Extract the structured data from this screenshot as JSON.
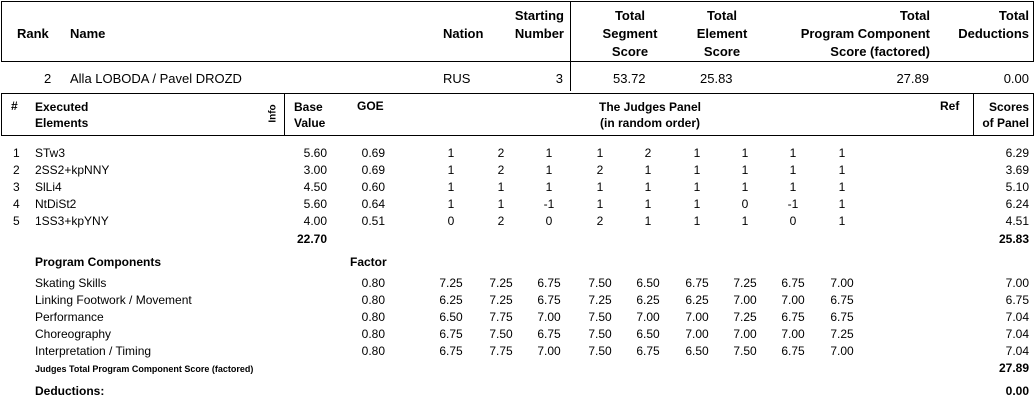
{
  "header": {
    "rank": "Rank",
    "name": "Name",
    "nation": "Nation",
    "starting_1": "Starting",
    "starting_2": "Number",
    "tss_1": "Total",
    "tss_2": "Segment",
    "tss_3": "Score",
    "tes_1": "Total",
    "tes_2": "Element",
    "tes_3": "Score",
    "pcs_1": "Total",
    "pcs_2": "Program  Component",
    "pcs_3": "Score (factored)",
    "ded_1": "Total",
    "ded_2": "Deductions"
  },
  "skater": {
    "rank": "2",
    "name": "Alla LOBODA / Pavel DROZD",
    "nation": "RUS",
    "start": "3",
    "tss": "53.72",
    "tes": "25.83",
    "pcs": "27.89",
    "ded": "0.00"
  },
  "elements_header": {
    "num": "#",
    "exec_1": "Executed",
    "exec_2": "Elements",
    "info": "Info",
    "base_1": "Base",
    "base_2": "Value",
    "goe": "GOE",
    "panel_1": "The Judges Panel",
    "panel_2": "(in random order)",
    "ref": "Ref",
    "scores_1": "Scores",
    "scores_2": "of Panel"
  },
  "elements": [
    {
      "n": "1",
      "name": "STw3",
      "base": "5.60",
      "goe": "0.69",
      "j": [
        "1",
        "2",
        "1",
        "1",
        "2",
        "1",
        "1",
        "1",
        "1"
      ],
      "score": "6.29"
    },
    {
      "n": "2",
      "name": "2SS2+kpNNY",
      "base": "3.00",
      "goe": "0.69",
      "j": [
        "1",
        "2",
        "1",
        "2",
        "1",
        "1",
        "1",
        "1",
        "1"
      ],
      "score": "3.69"
    },
    {
      "n": "3",
      "name": "SlLi4",
      "base": "4.50",
      "goe": "0.60",
      "j": [
        "1",
        "1",
        "1",
        "1",
        "1",
        "1",
        "1",
        "1",
        "1"
      ],
      "score": "5.10"
    },
    {
      "n": "4",
      "name": "NtDiSt2",
      "base": "5.60",
      "goe": "0.64",
      "j": [
        "1",
        "1",
        "-1",
        "1",
        "1",
        "1",
        "0",
        "-1",
        "1"
      ],
      "score": "6.24"
    },
    {
      "n": "5",
      "name": "1SS3+kpYNY",
      "base": "4.00",
      "goe": "0.51",
      "j": [
        "0",
        "2",
        "0",
        "2",
        "1",
        "1",
        "1",
        "0",
        "1"
      ],
      "score": "4.51"
    }
  ],
  "elements_total": {
    "base": "22.70",
    "score": "25.83"
  },
  "pc_header": {
    "title": "Program Components",
    "factor": "Factor"
  },
  "components": [
    {
      "name": "Skating Skills",
      "factor": "0.80",
      "j": [
        "7.25",
        "7.25",
        "6.75",
        "7.50",
        "6.50",
        "6.75",
        "7.25",
        "6.75",
        "7.00"
      ],
      "score": "7.00"
    },
    {
      "name": "Linking Footwork / Movement",
      "factor": "0.80",
      "j": [
        "6.25",
        "7.25",
        "6.75",
        "7.25",
        "6.25",
        "6.25",
        "7.00",
        "7.00",
        "6.75"
      ],
      "score": "6.75"
    },
    {
      "name": "Performance",
      "factor": "0.80",
      "j": [
        "6.50",
        "7.75",
        "7.00",
        "7.50",
        "7.00",
        "7.00",
        "7.25",
        "6.75",
        "6.75"
      ],
      "score": "7.04"
    },
    {
      "name": "Choreography",
      "factor": "0.80",
      "j": [
        "6.75",
        "7.50",
        "6.75",
        "7.50",
        "6.50",
        "7.00",
        "7.00",
        "7.00",
        "7.25"
      ],
      "score": "7.04"
    },
    {
      "name": "Interpretation / Timing",
      "factor": "0.80",
      "j": [
        "6.75",
        "7.75",
        "7.00",
        "7.50",
        "6.75",
        "6.50",
        "7.50",
        "6.75",
        "7.00"
      ],
      "score": "7.04"
    }
  ],
  "pcs_total": {
    "label": "Judges Total Program Component Score (factored)",
    "value": "27.89"
  },
  "deductions": {
    "label": "Deductions:",
    "value": "0.00"
  }
}
